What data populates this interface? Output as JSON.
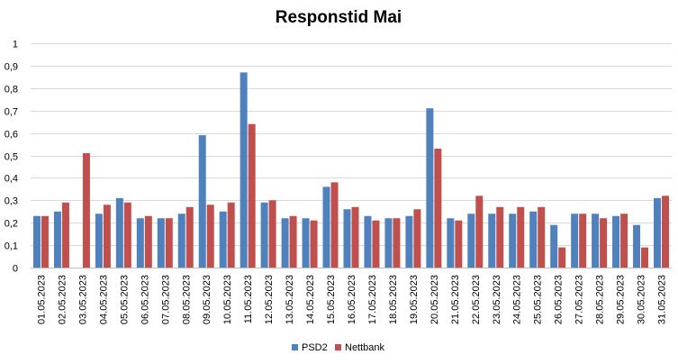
{
  "chart_data": {
    "type": "bar",
    "title": "Responstid Mai",
    "xlabel": "",
    "ylabel": "",
    "ylim": [
      0,
      1
    ],
    "yticks": [
      0,
      0.1,
      0.2,
      0.3,
      0.4,
      0.5,
      0.6,
      0.7,
      0.8,
      0.9,
      1
    ],
    "ytick_labels": [
      "0",
      "0,1",
      "0,2",
      "0,3",
      "0,4",
      "0,5",
      "0,6",
      "0,7",
      "0,8",
      "0,9",
      "1"
    ],
    "grid": true,
    "legend_position": "bottom",
    "categories": [
      "01.05.2023",
      "02.05.2023",
      "03.05.2023",
      "04.05.2023",
      "05.05.2023",
      "06.05.2023",
      "07.05.2023",
      "08.05.2023",
      "09.05.2023",
      "10.05.2023",
      "11.05.2023",
      "12.05.2023",
      "13.05.2023",
      "14.05.2023",
      "15.05.2023",
      "16.05.2023",
      "17.05.2023",
      "18.05.2023",
      "19.05.2023",
      "20.05.2023",
      "21.05.2023",
      "22.05.2023",
      "23.05.2023",
      "24.05.2023",
      "25.05.2023",
      "26.05.2023",
      "27.05.2023",
      "28.05.2023",
      "29.05.2023",
      "30.05.2023",
      "31.05.2023"
    ],
    "series": [
      {
        "name": "PSD2",
        "color": "#4f81bd",
        "values": [
          0.23,
          0.25,
          0,
          0.24,
          0.31,
          0.22,
          0.22,
          0.24,
          0.59,
          0.25,
          0.87,
          0.29,
          0.22,
          0.22,
          0.36,
          0.26,
          0.23,
          0.22,
          0.23,
          0.71,
          0.22,
          0.24,
          0.24,
          0.24,
          0.25,
          0.19,
          0.24,
          0.24,
          0.23,
          0.19,
          0.31
        ]
      },
      {
        "name": "Nettbank",
        "color": "#c0504d",
        "values": [
          0.23,
          0.29,
          0.51,
          0.28,
          0.29,
          0.23,
          0.22,
          0.27,
          0.28,
          0.29,
          0.64,
          0.3,
          0.23,
          0.21,
          0.38,
          0.27,
          0.21,
          0.22,
          0.26,
          0.53,
          0.21,
          0.32,
          0.27,
          0.27,
          0.27,
          0.09,
          0.24,
          0.22,
          0.24,
          0.09,
          0.32
        ]
      }
    ]
  }
}
